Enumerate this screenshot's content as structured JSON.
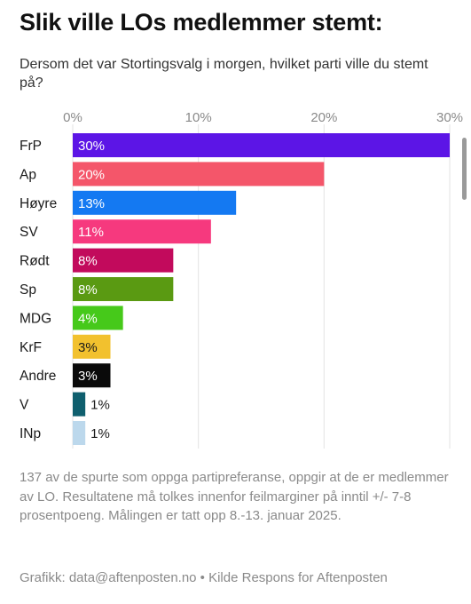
{
  "title": "Slik ville LOs medlemmer stemt:",
  "subtitle": "Dersom det var Stortingsvalg i morgen, hvilket parti ville du stemt på?",
  "footnote": "137 av de spurte som oppga partipreferanse, oppgir at de er medlemmer av LO. Resultatene må tolkes innenfor feilmarginer på inntil +/- 7-8 prosentpoeng. Målingen er tatt opp 8.-13. januar 2025.",
  "credit": "Grafikk: data@aftenposten.no • Kilde Respons for Aftenposten",
  "chart_data": {
    "type": "bar",
    "orientation": "horizontal",
    "categories": [
      "FrP",
      "Ap",
      "Høyre",
      "SV",
      "Rødt",
      "Sp",
      "MDG",
      "KrF",
      "Andre",
      "V",
      "INp"
    ],
    "values": [
      30,
      20,
      13,
      11,
      8,
      8,
      4,
      3,
      3,
      1,
      1
    ],
    "value_labels": [
      "30%",
      "20%",
      "13%",
      "11%",
      "8%",
      "8%",
      "4%",
      "3%",
      "3%",
      "1%",
      "1%"
    ],
    "colors": [
      "#5c15e6",
      "#f4566a",
      "#1479f2",
      "#f6397e",
      "#c20a5c",
      "#5a9a12",
      "#46c91a",
      "#f2c12e",
      "#0a0a0a",
      "#0f5f6e",
      "#bcd8ec"
    ],
    "label_colors": [
      "#ffffff",
      "#ffffff",
      "#ffffff",
      "#ffffff",
      "#ffffff",
      "#ffffff",
      "#ffffff",
      "#1a1a1a",
      "#ffffff",
      "#1a1a1a",
      "#1a1a1a"
    ],
    "x_ticks": [
      0,
      10,
      20,
      30
    ],
    "x_tick_labels": [
      "0%",
      "10%",
      "20%",
      "30%"
    ],
    "xlim": [
      0,
      30
    ],
    "grid": true,
    "legend": "none"
  }
}
